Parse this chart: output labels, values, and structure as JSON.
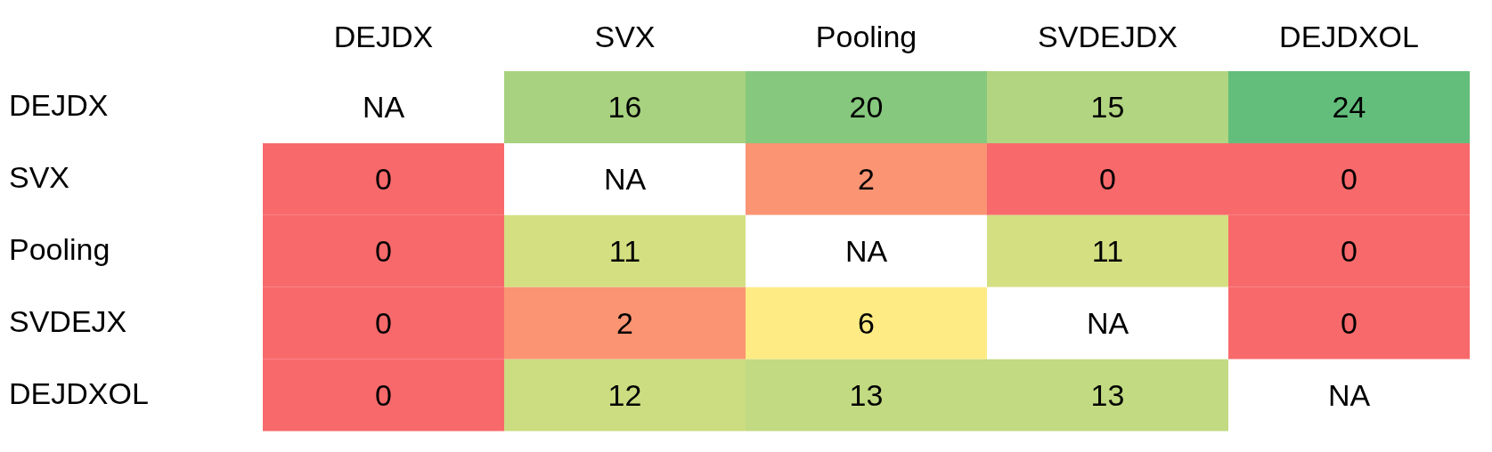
{
  "chart_data": {
    "type": "heatmap",
    "categories": [
      "DEJDX",
      "SVX",
      "Pooling",
      "SVDEJDX",
      "DEJDXOL"
    ],
    "y_categories": [
      "DEJDX",
      "SVX",
      "Pooling",
      "SVDEJX",
      "DEJDXOL"
    ],
    "cells": [
      [
        null,
        16,
        20,
        15,
        24
      ],
      [
        0,
        null,
        2,
        0,
        0
      ],
      [
        0,
        11,
        null,
        11,
        0
      ],
      [
        0,
        2,
        6,
        null,
        0
      ],
      [
        0,
        12,
        13,
        13,
        null
      ]
    ],
    "cell_labels": [
      [
        "NA",
        "16",
        "20",
        "15",
        "24"
      ],
      [
        "0",
        "NA",
        "2",
        "0",
        "0"
      ],
      [
        "0",
        "11",
        "NA",
        "11",
        "0"
      ],
      [
        "0",
        "2",
        "6",
        "NA",
        "0"
      ],
      [
        "0",
        "12",
        "13",
        "13",
        "NA"
      ]
    ]
  }
}
